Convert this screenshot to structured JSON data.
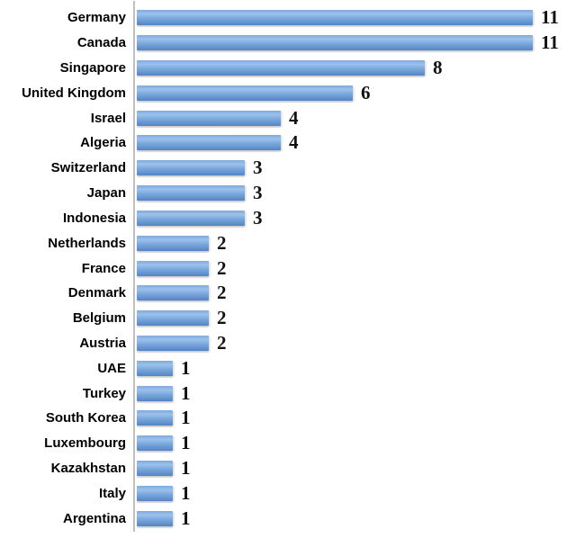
{
  "chart_data": {
    "type": "bar",
    "orientation": "horizontal",
    "title": "",
    "xlabel": "",
    "ylabel": "",
    "categories": [
      "Germany",
      "Canada",
      "Singapore",
      "United Kingdom",
      "Israel",
      "Algeria",
      "Switzerland",
      "Japan",
      "Indonesia",
      "Netherlands",
      "France",
      "Denmark",
      "Belgium",
      "Austria",
      "UAE",
      "Turkey",
      "South Korea",
      "Luxembourg",
      "Kazakhstan",
      "Italy",
      "Argentina"
    ],
    "values": [
      11,
      11,
      8,
      6,
      4,
      4,
      3,
      3,
      3,
      2,
      2,
      2,
      2,
      2,
      1,
      1,
      1,
      1,
      1,
      1,
      1
    ],
    "xlim": [
      0,
      11
    ],
    "grid": false,
    "legend": false,
    "data_labels": true,
    "colors": {
      "bar_fill_top": "#9cc2ec",
      "bar_fill_bottom": "#5584c6",
      "axis_line": "#bfbfbf",
      "label_text": "#000000",
      "value_text": "#111111",
      "background": "#ffffff"
    }
  }
}
